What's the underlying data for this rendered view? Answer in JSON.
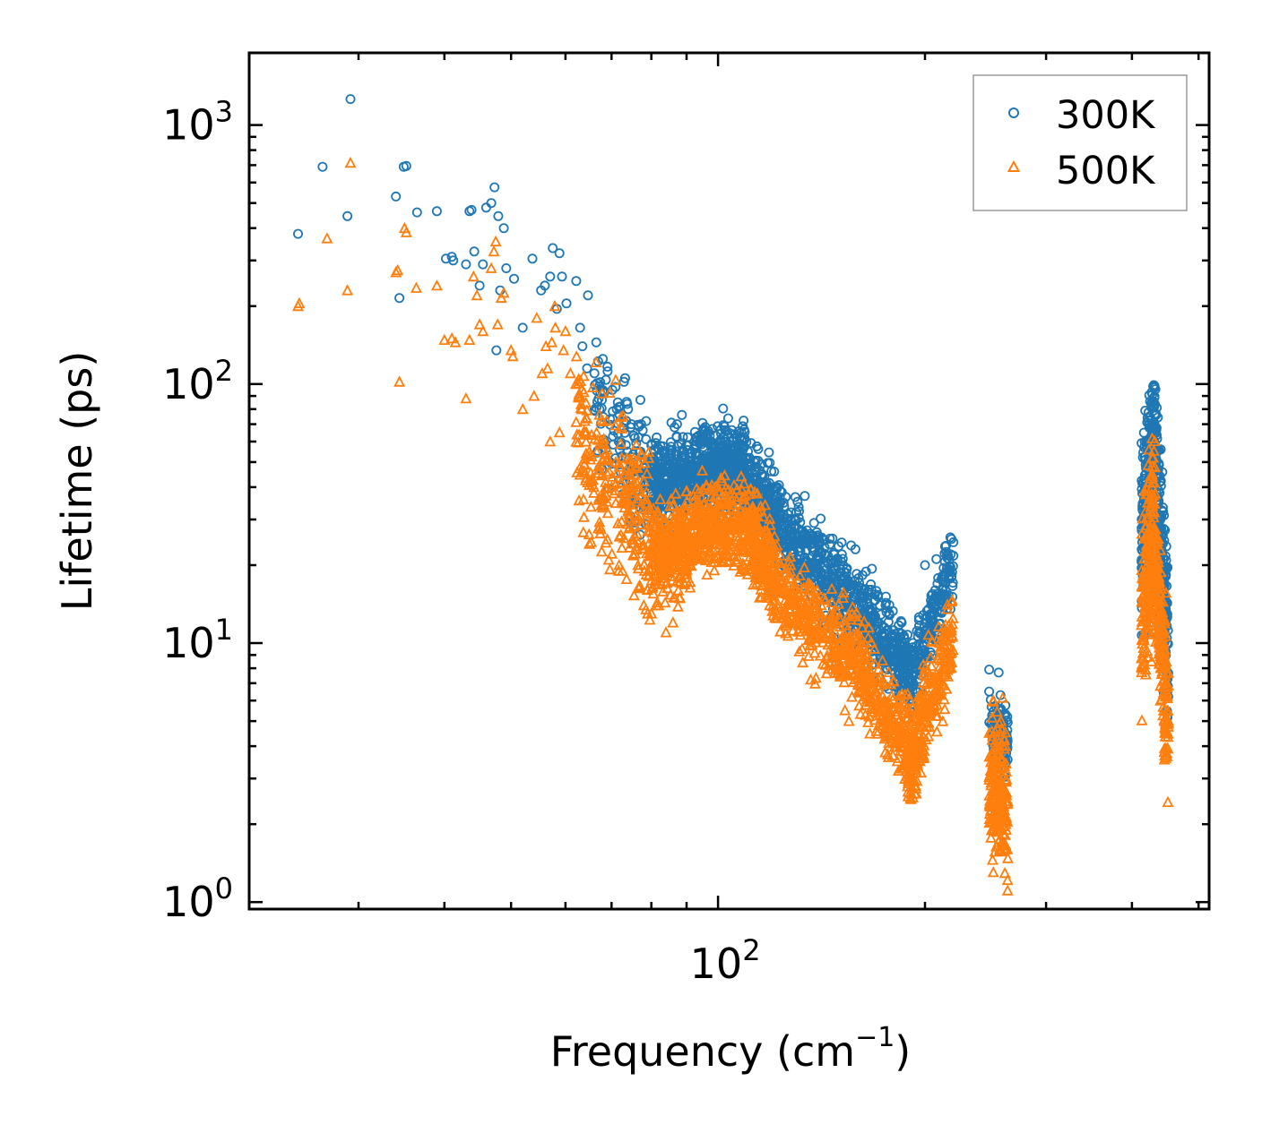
{
  "chart_data": {
    "type": "scatter",
    "xscale": "log",
    "yscale": "log",
    "xlim": [
      20.8,
      518
    ],
    "ylim": [
      0.94,
      1900
    ],
    "xlabel": "Frequency (cm",
    "xlabel_sup": "−1",
    "xlabel_end": ")",
    "ylabel": "Lifetime (ps)",
    "x_ticks": [
      {
        "value": 100,
        "base": "10",
        "exp": "2"
      }
    ],
    "y_ticks": [
      {
        "value": 1,
        "base": "10",
        "exp": "0"
      },
      {
        "value": 10,
        "base": "10",
        "exp": "1"
      },
      {
        "value": 100,
        "base": "10",
        "exp": "2"
      },
      {
        "value": 1000,
        "base": "10",
        "exp": "3"
      }
    ],
    "legend": {
      "position": "top-right"
    },
    "series": [
      {
        "name": "300K",
        "marker": "circle",
        "color": "#1f77b4",
        "scattered": [
          [
            24.5,
            380
          ],
          [
            26.6,
            690
          ],
          [
            28.9,
            445
          ],
          [
            29.2,
            1260
          ],
          [
            34.0,
            530
          ],
          [
            34.4,
            215
          ],
          [
            34.9,
            690
          ],
          [
            35.2,
            695
          ],
          [
            36.5,
            460
          ],
          [
            39.0,
            465
          ],
          [
            40.2,
            305
          ],
          [
            41.0,
            310
          ],
          [
            41.2,
            300
          ],
          [
            43.0,
            290
          ],
          [
            43.5,
            465
          ],
          [
            43.8,
            470
          ],
          [
            44.2,
            325
          ],
          [
            45.0,
            240
          ],
          [
            45.5,
            290
          ],
          [
            46.0,
            480
          ],
          [
            46.8,
            500
          ],
          [
            47.3,
            575
          ],
          [
            47.6,
            135
          ],
          [
            47.9,
            445
          ],
          [
            48.2,
            230
          ],
          [
            48.8,
            400
          ],
          [
            49.2,
            280
          ],
          [
            50.5,
            255
          ],
          [
            52.0,
            165
          ],
          [
            53.7,
            305
          ],
          [
            55.3,
            230
          ],
          [
            56.0,
            240
          ],
          [
            57.0,
            260
          ],
          [
            57.5,
            335
          ],
          [
            58.3,
            195
          ],
          [
            58.8,
            320
          ],
          [
            59.3,
            260
          ],
          [
            60.2,
            205
          ],
          [
            62.2,
            250
          ],
          [
            63.0,
            165
          ],
          [
            64.7,
            220
          ],
          [
            63.5,
            140
          ],
          [
            64.5,
            115
          ],
          [
            66.5,
            145
          ],
          [
            66.1,
            110
          ],
          [
            68.0,
            125
          ],
          [
            69.1,
            112
          ],
          [
            70.2,
            95
          ],
          [
            71.5,
            85
          ],
          [
            73.0,
            102
          ],
          [
            74.0,
            80
          ],
          [
            74.8,
            70
          ],
          [
            75.7,
            62
          ],
          [
            77.3,
            70
          ],
          [
            78.6,
            72
          ],
          [
            80.0,
            58
          ],
          [
            82.0,
            56
          ],
          [
            84.0,
            48
          ],
          [
            87.2,
            70
          ],
          [
            88.6,
            76
          ],
          [
            90.0,
            58
          ],
          [
            93.0,
            60
          ],
          [
            95.0,
            50
          ],
          [
            98.0,
            58
          ],
          [
            102.0,
            60
          ],
          [
            105.0,
            55
          ],
          [
            110.0,
            52
          ],
          [
            113.0,
            50
          ],
          [
            118.0,
            38
          ],
          [
            122.0,
            40
          ],
          [
            130.0,
            32
          ],
          [
            134.0,
            25
          ],
          [
            143.0,
            22
          ],
          [
            153.0,
            18
          ],
          [
            163.0,
            16
          ],
          [
            172.0,
            14
          ],
          [
            185.0,
            12
          ],
          [
            192.0,
            10
          ],
          [
            200.0,
            20
          ],
          [
            207.0,
            16
          ],
          [
            212.0,
            18
          ],
          [
            218.0,
            22
          ],
          [
            248.0,
            7.9
          ],
          [
            248.0,
            6.5
          ],
          [
            256.0,
            7.7
          ],
          [
            257.5,
            6.3
          ],
          [
            262.0,
            5.3
          ],
          [
            255.0,
            4.0
          ],
          [
            260.0,
            3.5
          ],
          [
            428.0,
            85
          ],
          [
            428.0,
            70
          ],
          [
            425.0,
            55
          ],
          [
            432.0,
            48
          ],
          [
            440.0,
            30
          ],
          [
            440.0,
            20
          ],
          [
            446.0,
            14
          ],
          [
            450.0,
            10
          ]
        ],
        "bands": [
          {
            "x": [
              66,
              72
            ],
            "n": 50,
            "yc": [
              75,
              60
            ],
            "spread": 0.15
          },
          {
            "x": [
              72,
              78
            ],
            "n": 60,
            "yc": [
              55,
              38
            ],
            "spread": 0.15
          },
          {
            "x": [
              78,
              95
            ],
            "n": 380,
            "yc": [
              40,
              48
            ],
            "spread": 0.08
          },
          {
            "x": [
              95,
              110
            ],
            "n": 380,
            "yc": [
              50,
              47
            ],
            "spread": 0.08
          },
          {
            "x": [
              110,
              125
            ],
            "n": 260,
            "yc": [
              42,
              27
            ],
            "spread": 0.08
          },
          {
            "x": [
              125,
              150
            ],
            "n": 260,
            "yc": [
              26,
              17
            ],
            "spread": 0.08
          },
          {
            "x": [
              150,
              180
            ],
            "n": 260,
            "yc": [
              16,
              9.5
            ],
            "spread": 0.08
          },
          {
            "x": [
              180,
              192
            ],
            "n": 120,
            "yc": [
              9,
              7.5
            ],
            "spread": 0.07
          },
          {
            "x": [
              192,
              220
            ],
            "n": 180,
            "yc": [
              8,
              20
            ],
            "spread": 0.07
          },
          {
            "x": [
              248,
              264
            ],
            "n": 130,
            "yc": [
              4.6,
              4.3
            ],
            "spread": 0.06
          },
          {
            "x": [
              413,
              432
            ],
            "n": 220,
            "yc": [
              25,
              60
            ],
            "spread": 0.16
          },
          {
            "x": [
              432,
              452
            ],
            "n": 220,
            "yc": [
              50,
              8.5
            ],
            "spread": 0.16
          }
        ]
      },
      {
        "name": "500K",
        "marker": "triangle",
        "color": "#ff7f0e",
        "scattered": [
          [
            24.5,
            200
          ],
          [
            24.6,
            205
          ],
          [
            27.0,
            365
          ],
          [
            28.9,
            230
          ],
          [
            29.2,
            715
          ],
          [
            34.0,
            270
          ],
          [
            34.2,
            275
          ],
          [
            34.4,
            102
          ],
          [
            35.0,
            400
          ],
          [
            35.2,
            385
          ],
          [
            36.4,
            235
          ],
          [
            39.0,
            240
          ],
          [
            40.0,
            148
          ],
          [
            41.0,
            150
          ],
          [
            41.5,
            145
          ],
          [
            43.0,
            88
          ],
          [
            43.5,
            148
          ],
          [
            44.1,
            260
          ],
          [
            44.6,
            220
          ],
          [
            45.0,
            170
          ],
          [
            45.5,
            160
          ],
          [
            46.8,
            280
          ],
          [
            47.2,
            325
          ],
          [
            47.5,
            355
          ],
          [
            47.8,
            170
          ],
          [
            48.4,
            215
          ],
          [
            48.8,
            225
          ],
          [
            50.0,
            135
          ],
          [
            50.3,
            128
          ],
          [
            52.0,
            80
          ],
          [
            54.0,
            90
          ],
          [
            54.5,
            180
          ],
          [
            55.5,
            110
          ],
          [
            56.2,
            140
          ],
          [
            56.5,
            115
          ],
          [
            57.0,
            60
          ],
          [
            57.3,
            145
          ],
          [
            57.9,
            200
          ],
          [
            58.0,
            165
          ],
          [
            58.8,
            65
          ],
          [
            59.6,
            135
          ],
          [
            60.0,
            160
          ],
          [
            61.0,
            110
          ],
          [
            62.1,
            100
          ],
          [
            62.7,
            90
          ],
          [
            64.0,
            72
          ],
          [
            65.0,
            55
          ],
          [
            66.0,
            40
          ],
          [
            67.0,
            48
          ],
          [
            68.0,
            60
          ],
          [
            69.0,
            45
          ],
          [
            70.0,
            40
          ],
          [
            71.0,
            50
          ],
          [
            71.8,
            20
          ],
          [
            72.6,
            19
          ],
          [
            75.0,
            25
          ],
          [
            76.5,
            20
          ],
          [
            78.0,
            14
          ],
          [
            80.0,
            13
          ],
          [
            82.0,
            14
          ],
          [
            84.0,
            11
          ],
          [
            86.0,
            12
          ],
          [
            88.0,
            15
          ],
          [
            90.0,
            20
          ],
          [
            100.0,
            25
          ],
          [
            105.0,
            38
          ],
          [
            110.0,
            32
          ],
          [
            113.0,
            32
          ],
          [
            118.0,
            27
          ],
          [
            130.0,
            15
          ],
          [
            140.0,
            13
          ],
          [
            150.0,
            9.0
          ],
          [
            153.0,
            5.5
          ],
          [
            155.0,
            5.0
          ],
          [
            160.0,
            7.5
          ],
          [
            170.0,
            6.5
          ],
          [
            180.0,
            5.0
          ],
          [
            188.0,
            3.2
          ],
          [
            195.0,
            5.5
          ],
          [
            200.0,
            8.0
          ],
          [
            210.0,
            10
          ],
          [
            217.0,
            11
          ],
          [
            248.0,
            4.5
          ],
          [
            258.0,
            5.0
          ],
          [
            262.0,
            4.0
          ],
          [
            428.0,
            52
          ],
          [
            428.0,
            45
          ],
          [
            440.0,
            6.0
          ],
          [
            446.0,
            5.0
          ],
          [
            448.0,
            3.6
          ]
        ],
        "bands": [
          {
            "x": [
              62,
              72
            ],
            "n": 130,
            "yc": [
              70,
              38
            ],
            "spread": 0.16
          },
          {
            "x": [
              72,
              80
            ],
            "n": 130,
            "yc": [
              40,
              22
            ],
            "spread": 0.14
          },
          {
            "x": [
              80,
              92
            ],
            "n": 330,
            "yc": [
              22,
              25
            ],
            "spread": 0.09
          },
          {
            "x": [
              92,
              112
            ],
            "n": 360,
            "yc": [
              28,
              28
            ],
            "spread": 0.08
          },
          {
            "x": [
              112,
              122
            ],
            "n": 200,
            "yc": [
              26,
              17
            ],
            "spread": 0.08
          },
          {
            "x": [
              122,
              160
            ],
            "n": 330,
            "yc": [
              16,
              8.5
            ],
            "spread": 0.08
          },
          {
            "x": [
              160,
              188
            ],
            "n": 230,
            "yc": [
              8,
              4.2
            ],
            "spread": 0.08
          },
          {
            "x": [
              188,
              195
            ],
            "n": 100,
            "yc": [
              3.8,
              3.6
            ],
            "spread": 0.09
          },
          {
            "x": [
              195,
              220
            ],
            "n": 200,
            "yc": [
              4.5,
              10.5
            ],
            "spread": 0.09
          },
          {
            "x": [
              248,
              264
            ],
            "n": 200,
            "yc": [
              2.9,
              2.2
            ],
            "spread": 0.14
          },
          {
            "x": [
              413,
              432
            ],
            "n": 200,
            "yc": [
              12,
              33
            ],
            "spread": 0.17
          },
          {
            "x": [
              432,
              452
            ],
            "n": 200,
            "yc": [
              22,
              4.6
            ],
            "spread": 0.14
          }
        ]
      }
    ]
  }
}
